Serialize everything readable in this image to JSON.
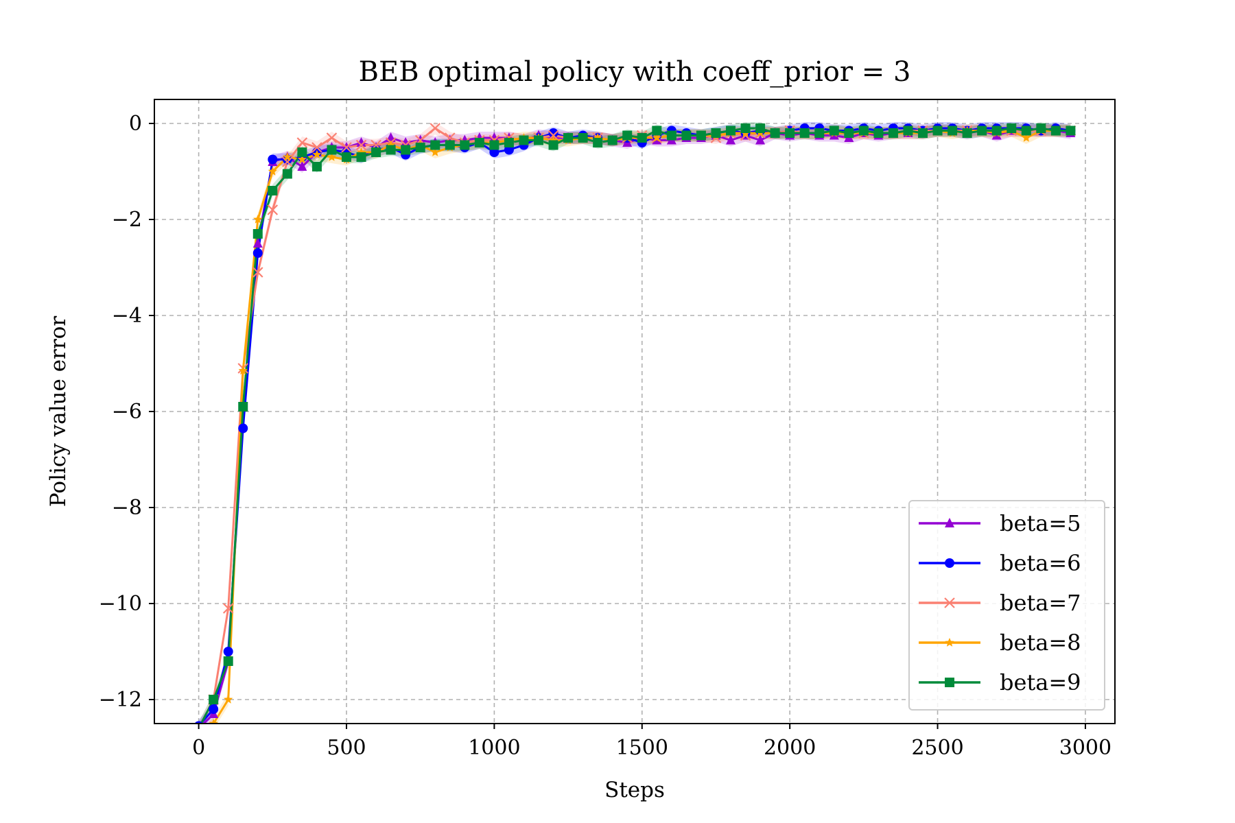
{
  "chart_data": {
    "type": "line",
    "title": "BEB optimal policy with coeff_prior = 3",
    "xlabel": "Steps",
    "ylabel": "Policy value error",
    "xlim": [
      -150,
      3100
    ],
    "ylim": [
      -12.5,
      0.5
    ],
    "xticks": [
      0,
      500,
      1000,
      1500,
      2000,
      2500,
      3000
    ],
    "yticks": [
      0,
      -2,
      -4,
      -6,
      -8,
      -10,
      -12
    ],
    "xtick_labels": [
      "0",
      "500",
      "1000",
      "1500",
      "2000",
      "2500",
      "3000"
    ],
    "ytick_labels": [
      "0",
      "−2",
      "−4",
      "−6",
      "−8",
      "−10",
      "−12"
    ],
    "grid": true,
    "legend_position": "lower-right",
    "x": [
      0,
      50,
      100,
      150,
      200,
      250,
      300,
      350,
      400,
      450,
      500,
      550,
      600,
      650,
      700,
      750,
      800,
      850,
      900,
      950,
      1000,
      1050,
      1100,
      1150,
      1200,
      1250,
      1300,
      1350,
      1400,
      1450,
      1500,
      1550,
      1600,
      1650,
      1700,
      1750,
      1800,
      1850,
      1900,
      1950,
      2000,
      2050,
      2100,
      2150,
      2200,
      2250,
      2300,
      2350,
      2400,
      2450,
      2500,
      2550,
      2600,
      2650,
      2700,
      2750,
      2800,
      2850,
      2900,
      2950
    ],
    "series": [
      {
        "name": "beta=5",
        "color": "#9400d3",
        "marker": "triangle",
        "values": [
          -12.6,
          -12.3,
          -11.2,
          -5.9,
          -2.5,
          -0.8,
          -0.7,
          -0.9,
          -0.6,
          -0.5,
          -0.5,
          -0.4,
          -0.5,
          -0.3,
          -0.4,
          -0.35,
          -0.4,
          -0.35,
          -0.35,
          -0.3,
          -0.3,
          -0.3,
          -0.35,
          -0.25,
          -0.3,
          -0.3,
          -0.3,
          -0.3,
          -0.35,
          -0.4,
          -0.3,
          -0.35,
          -0.35,
          -0.3,
          -0.3,
          -0.25,
          -0.35,
          -0.25,
          -0.35,
          -0.2,
          -0.25,
          -0.2,
          -0.25,
          -0.25,
          -0.3,
          -0.2,
          -0.25,
          -0.2,
          -0.2,
          -0.2,
          -0.15,
          -0.15,
          -0.2,
          -0.15,
          -0.25,
          -0.15,
          -0.15,
          -0.15,
          -0.15,
          -0.2
        ]
      },
      {
        "name": "beta=6",
        "color": "#0000ff",
        "marker": "circle",
        "values": [
          -12.55,
          -12.2,
          -11.0,
          -6.35,
          -2.7,
          -0.75,
          -0.75,
          -0.7,
          -0.6,
          -0.55,
          -0.6,
          -0.7,
          -0.55,
          -0.5,
          -0.65,
          -0.5,
          -0.45,
          -0.45,
          -0.5,
          -0.4,
          -0.6,
          -0.55,
          -0.45,
          -0.3,
          -0.2,
          -0.3,
          -0.25,
          -0.3,
          -0.35,
          -0.3,
          -0.4,
          -0.25,
          -0.15,
          -0.2,
          -0.25,
          -0.2,
          -0.15,
          -0.2,
          -0.15,
          -0.2,
          -0.15,
          -0.1,
          -0.1,
          -0.15,
          -0.15,
          -0.1,
          -0.15,
          -0.1,
          -0.1,
          -0.15,
          -0.1,
          -0.1,
          -0.15,
          -0.1,
          -0.1,
          -0.1,
          -0.1,
          -0.15,
          -0.1,
          -0.15
        ]
      },
      {
        "name": "beta=7",
        "color": "#fa8072",
        "marker": "x",
        "values": [
          -12.6,
          -12.0,
          -10.1,
          -5.1,
          -3.1,
          -1.8,
          -0.8,
          -0.4,
          -0.5,
          -0.3,
          -0.5,
          -0.45,
          -0.45,
          -0.4,
          -0.45,
          -0.35,
          -0.1,
          -0.3,
          -0.4,
          -0.35,
          -0.35,
          -0.3,
          -0.35,
          -0.3,
          -0.25,
          -0.3,
          -0.3,
          -0.3,
          -0.35,
          -0.3,
          -0.25,
          -0.3,
          -0.25,
          -0.25,
          -0.25,
          -0.3,
          -0.2,
          -0.25,
          -0.2,
          -0.2,
          -0.15,
          -0.2,
          -0.2,
          -0.15,
          -0.2,
          -0.2,
          -0.2,
          -0.2,
          -0.15,
          -0.15,
          -0.15,
          -0.15,
          -0.15,
          -0.15,
          -0.15,
          -0.15,
          -0.15,
          -0.15,
          -0.15,
          -0.15
        ]
      },
      {
        "name": "beta=8",
        "color": "#ffa500",
        "marker": "star",
        "values": [
          -12.8,
          -12.5,
          -12.0,
          -5.15,
          -2.0,
          -1.0,
          -0.7,
          -0.75,
          -0.65,
          -0.7,
          -0.75,
          -0.6,
          -0.6,
          -0.45,
          -0.55,
          -0.45,
          -0.6,
          -0.5,
          -0.45,
          -0.4,
          -0.4,
          -0.35,
          -0.3,
          -0.3,
          -0.35,
          -0.35,
          -0.3,
          -0.3,
          -0.35,
          -0.3,
          -0.3,
          -0.3,
          -0.25,
          -0.25,
          -0.25,
          -0.25,
          -0.2,
          -0.2,
          -0.2,
          -0.2,
          -0.2,
          -0.2,
          -0.2,
          -0.2,
          -0.2,
          -0.2,
          -0.2,
          -0.2,
          -0.2,
          -0.2,
          -0.15,
          -0.2,
          -0.15,
          -0.15,
          -0.2,
          -0.15,
          -0.3,
          -0.15,
          -0.15,
          -0.15
        ]
      },
      {
        "name": "beta=9",
        "color": "#008b3a",
        "marker": "square",
        "values": [
          -12.6,
          -12.0,
          -11.2,
          -5.9,
          -2.3,
          -1.4,
          -1.05,
          -0.6,
          -0.9,
          -0.55,
          -0.7,
          -0.7,
          -0.6,
          -0.55,
          -0.55,
          -0.5,
          -0.45,
          -0.45,
          -0.45,
          -0.4,
          -0.45,
          -0.4,
          -0.35,
          -0.35,
          -0.45,
          -0.3,
          -0.3,
          -0.4,
          -0.35,
          -0.25,
          -0.3,
          -0.15,
          -0.25,
          -0.25,
          -0.25,
          -0.2,
          -0.15,
          -0.1,
          -0.1,
          -0.2,
          -0.2,
          -0.2,
          -0.2,
          -0.15,
          -0.2,
          -0.15,
          -0.2,
          -0.2,
          -0.15,
          -0.2,
          -0.15,
          -0.15,
          -0.2,
          -0.15,
          -0.15,
          -0.1,
          -0.15,
          -0.1,
          -0.15,
          -0.15
        ]
      }
    ]
  }
}
